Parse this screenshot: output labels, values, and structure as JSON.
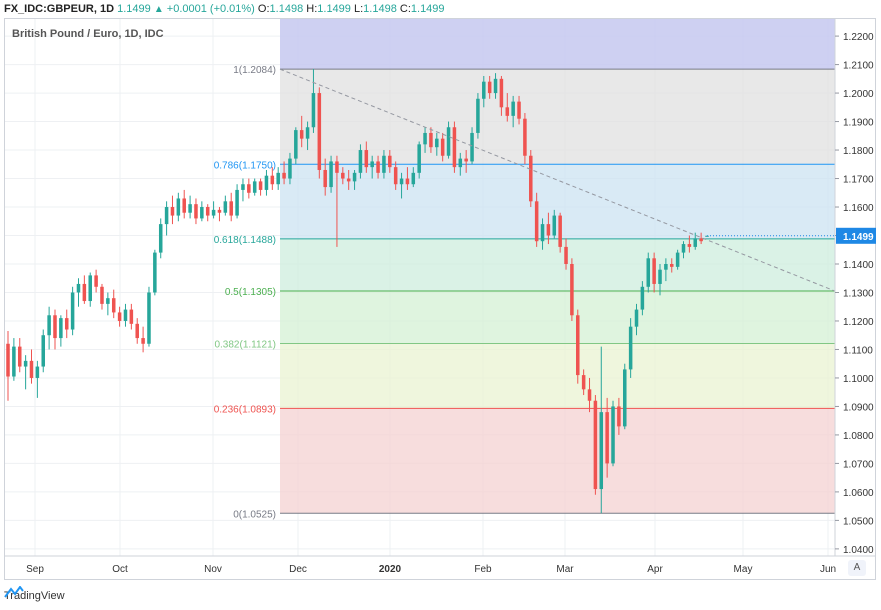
{
  "header": {
    "symbol": "FX_IDC:GBPEUR, 1D",
    "last": "1.1499",
    "change_arrow": "▲",
    "change": "+0.0001 (+0.01%)",
    "o_label": "O:",
    "o": "1.1498",
    "h_label": "H:",
    "h": "1.1499",
    "l_label": "L:",
    "l": "1.1498",
    "c_label": "C:",
    "c": "1.1499"
  },
  "subtitle": "British Pound / Euro, 1D, IDC",
  "footer": {
    "brand": "TradingView"
  },
  "auto_label": "A",
  "colors": {
    "up": "#26a69a",
    "down": "#ef5350",
    "grid": "#eef0f3",
    "fib_top_zone": "#c5c8f0",
    "fib_0786_zone": "#e0e0e0",
    "fib_0618_zone": "#cce3f2",
    "fib_05_zone": "#cdeede",
    "fib_0382_zone": "#d4f0d4",
    "fib_0236_zone": "#e9f3d2",
    "fib_0_zone": "#f4d2d2",
    "last_price_tag": "#1e88e5"
  },
  "chart_data": {
    "type": "candlestick",
    "title": "British Pound / Euro, 1D, IDC",
    "ylim": [
      1.0375,
      1.226
    ],
    "y_ticks": [
      "1.2200",
      "1.2100",
      "1.2000",
      "1.1900",
      "1.1800",
      "1.1700",
      "1.1600",
      "1.1500",
      "1.1400",
      "1.1300",
      "1.1200",
      "1.1100",
      "1.1000",
      "1.0900",
      "1.0800",
      "1.0700",
      "1.0600",
      "1.0500",
      "1.0400"
    ],
    "x_ticks": [
      "Sep",
      "Oct",
      "Nov",
      "Dec",
      "2020",
      "Feb",
      "Mar",
      "Apr",
      "May",
      "Jun"
    ],
    "last_price": "1.1499",
    "fib_levels": [
      {
        "ratio": "1",
        "price": 1.2084,
        "label": "1(1.2084)",
        "color": "#787b86"
      },
      {
        "ratio": "0.786",
        "price": 1.175,
        "label": "0.786(1.1750)",
        "color": "#2196f3"
      },
      {
        "ratio": "0.618",
        "price": 1.1488,
        "label": "0.618(1.1488)",
        "color": "#26a69a"
      },
      {
        "ratio": "0.5",
        "price": 1.1305,
        "label": "0.5(1.1305)",
        "color": "#4caf50"
      },
      {
        "ratio": "0.382",
        "price": 1.1121,
        "label": "0.382(1.1121)",
        "color": "#81c784"
      },
      {
        "ratio": "0.236",
        "price": 1.0893,
        "label": "0.236(1.0893)",
        "color": "#ef5350"
      },
      {
        "ratio": "0",
        "price": 1.0525,
        "label": "0(1.0525)",
        "color": "#787b86"
      }
    ],
    "fib_above_top": 1.226,
    "series": [
      {
        "o": 1.112,
        "h": 1.1165,
        "l": 1.092,
        "c": 1.1005
      },
      {
        "o": 1.1005,
        "h": 1.114,
        "l": 1.099,
        "c": 1.111
      },
      {
        "o": 1.111,
        "h": 1.114,
        "l": 1.102,
        "c": 1.104
      },
      {
        "o": 1.104,
        "h": 1.108,
        "l": 1.096,
        "c": 1.106
      },
      {
        "o": 1.106,
        "h": 1.11,
        "l": 1.098,
        "c": 1.1
      },
      {
        "o": 1.1,
        "h": 1.106,
        "l": 1.093,
        "c": 1.104
      },
      {
        "o": 1.104,
        "h": 1.117,
        "l": 1.102,
        "c": 1.115
      },
      {
        "o": 1.115,
        "h": 1.125,
        "l": 1.11,
        "c": 1.122
      },
      {
        "o": 1.122,
        "h": 1.124,
        "l": 1.11,
        "c": 1.114
      },
      {
        "o": 1.114,
        "h": 1.122,
        "l": 1.111,
        "c": 1.121
      },
      {
        "o": 1.121,
        "h": 1.124,
        "l": 1.114,
        "c": 1.117
      },
      {
        "o": 1.117,
        "h": 1.132,
        "l": 1.115,
        "c": 1.13
      },
      {
        "o": 1.13,
        "h": 1.135,
        "l": 1.125,
        "c": 1.133
      },
      {
        "o": 1.133,
        "h": 1.136,
        "l": 1.126,
        "c": 1.127
      },
      {
        "o": 1.127,
        "h": 1.137,
        "l": 1.125,
        "c": 1.136
      },
      {
        "o": 1.136,
        "h": 1.138,
        "l": 1.13,
        "c": 1.132
      },
      {
        "o": 1.132,
        "h": 1.133,
        "l": 1.124,
        "c": 1.126
      },
      {
        "o": 1.126,
        "h": 1.13,
        "l": 1.122,
        "c": 1.128
      },
      {
        "o": 1.128,
        "h": 1.131,
        "l": 1.121,
        "c": 1.123
      },
      {
        "o": 1.123,
        "h": 1.125,
        "l": 1.118,
        "c": 1.12
      },
      {
        "o": 1.12,
        "h": 1.126,
        "l": 1.118,
        "c": 1.124
      },
      {
        "o": 1.124,
        "h": 1.126,
        "l": 1.117,
        "c": 1.119
      },
      {
        "o": 1.119,
        "h": 1.121,
        "l": 1.112,
        "c": 1.114
      },
      {
        "o": 1.114,
        "h": 1.118,
        "l": 1.109,
        "c": 1.112
      },
      {
        "o": 1.112,
        "h": 1.132,
        "l": 1.111,
        "c": 1.13
      },
      {
        "o": 1.13,
        "h": 1.145,
        "l": 1.129,
        "c": 1.144
      },
      {
        "o": 1.144,
        "h": 1.156,
        "l": 1.142,
        "c": 1.154
      },
      {
        "o": 1.154,
        "h": 1.162,
        "l": 1.15,
        "c": 1.16
      },
      {
        "o": 1.16,
        "h": 1.164,
        "l": 1.154,
        "c": 1.157
      },
      {
        "o": 1.157,
        "h": 1.165,
        "l": 1.155,
        "c": 1.163
      },
      {
        "o": 1.163,
        "h": 1.166,
        "l": 1.156,
        "c": 1.158
      },
      {
        "o": 1.158,
        "h": 1.164,
        "l": 1.156,
        "c": 1.161
      },
      {
        "o": 1.161,
        "h": 1.163,
        "l": 1.154,
        "c": 1.156
      },
      {
        "o": 1.156,
        "h": 1.162,
        "l": 1.155,
        "c": 1.16
      },
      {
        "o": 1.16,
        "h": 1.161,
        "l": 1.155,
        "c": 1.157
      },
      {
        "o": 1.157,
        "h": 1.162,
        "l": 1.156,
        "c": 1.159
      },
      {
        "o": 1.159,
        "h": 1.16,
        "l": 1.155,
        "c": 1.158
      },
      {
        "o": 1.158,
        "h": 1.164,
        "l": 1.157,
        "c": 1.162
      },
      {
        "o": 1.162,
        "h": 1.165,
        "l": 1.155,
        "c": 1.157
      },
      {
        "o": 1.157,
        "h": 1.168,
        "l": 1.156,
        "c": 1.166
      },
      {
        "o": 1.166,
        "h": 1.17,
        "l": 1.162,
        "c": 1.168
      },
      {
        "o": 1.168,
        "h": 1.17,
        "l": 1.163,
        "c": 1.165
      },
      {
        "o": 1.165,
        "h": 1.17,
        "l": 1.164,
        "c": 1.169
      },
      {
        "o": 1.169,
        "h": 1.17,
        "l": 1.164,
        "c": 1.166
      },
      {
        "o": 1.166,
        "h": 1.173,
        "l": 1.164,
        "c": 1.171
      },
      {
        "o": 1.171,
        "h": 1.174,
        "l": 1.166,
        "c": 1.168
      },
      {
        "o": 1.168,
        "h": 1.174,
        "l": 1.166,
        "c": 1.172
      },
      {
        "o": 1.172,
        "h": 1.176,
        "l": 1.168,
        "c": 1.17
      },
      {
        "o": 1.17,
        "h": 1.179,
        "l": 1.168,
        "c": 1.177
      },
      {
        "o": 1.177,
        "h": 1.188,
        "l": 1.175,
        "c": 1.187
      },
      {
        "o": 1.187,
        "h": 1.192,
        "l": 1.181,
        "c": 1.184
      },
      {
        "o": 1.184,
        "h": 1.19,
        "l": 1.18,
        "c": 1.188
      },
      {
        "o": 1.188,
        "h": 1.2084,
        "l": 1.186,
        "c": 1.2
      },
      {
        "o": 1.2,
        "h": 1.202,
        "l": 1.17,
        "c": 1.173
      },
      {
        "o": 1.173,
        "h": 1.177,
        "l": 1.164,
        "c": 1.167
      },
      {
        "o": 1.167,
        "h": 1.178,
        "l": 1.165,
        "c": 1.176
      },
      {
        "o": 1.176,
        "h": 1.178,
        "l": 1.146,
        "c": 1.172
      },
      {
        "o": 1.172,
        "h": 1.174,
        "l": 1.168,
        "c": 1.17
      },
      {
        "o": 1.17,
        "h": 1.173,
        "l": 1.166,
        "c": 1.169
      },
      {
        "o": 1.169,
        "h": 1.173,
        "l": 1.166,
        "c": 1.172
      },
      {
        "o": 1.172,
        "h": 1.182,
        "l": 1.17,
        "c": 1.18
      },
      {
        "o": 1.18,
        "h": 1.183,
        "l": 1.172,
        "c": 1.174
      },
      {
        "o": 1.174,
        "h": 1.178,
        "l": 1.17,
        "c": 1.176
      },
      {
        "o": 1.176,
        "h": 1.178,
        "l": 1.17,
        "c": 1.172
      },
      {
        "o": 1.172,
        "h": 1.18,
        "l": 1.17,
        "c": 1.178
      },
      {
        "o": 1.178,
        "h": 1.18,
        "l": 1.172,
        "c": 1.174
      },
      {
        "o": 1.174,
        "h": 1.176,
        "l": 1.166,
        "c": 1.168
      },
      {
        "o": 1.168,
        "h": 1.172,
        "l": 1.163,
        "c": 1.17
      },
      {
        "o": 1.17,
        "h": 1.174,
        "l": 1.166,
        "c": 1.168
      },
      {
        "o": 1.168,
        "h": 1.174,
        "l": 1.167,
        "c": 1.172
      },
      {
        "o": 1.172,
        "h": 1.183,
        "l": 1.17,
        "c": 1.182
      },
      {
        "o": 1.182,
        "h": 1.188,
        "l": 1.179,
        "c": 1.186
      },
      {
        "o": 1.186,
        "h": 1.188,
        "l": 1.179,
        "c": 1.181
      },
      {
        "o": 1.181,
        "h": 1.186,
        "l": 1.178,
        "c": 1.184
      },
      {
        "o": 1.184,
        "h": 1.186,
        "l": 1.176,
        "c": 1.178
      },
      {
        "o": 1.178,
        "h": 1.19,
        "l": 1.177,
        "c": 1.188
      },
      {
        "o": 1.188,
        "h": 1.19,
        "l": 1.172,
        "c": 1.174
      },
      {
        "o": 1.174,
        "h": 1.179,
        "l": 1.171,
        "c": 1.177
      },
      {
        "o": 1.177,
        "h": 1.18,
        "l": 1.172,
        "c": 1.176
      },
      {
        "o": 1.176,
        "h": 1.188,
        "l": 1.175,
        "c": 1.186
      },
      {
        "o": 1.186,
        "h": 1.2,
        "l": 1.184,
        "c": 1.198
      },
      {
        "o": 1.198,
        "h": 1.206,
        "l": 1.195,
        "c": 1.204
      },
      {
        "o": 1.204,
        "h": 1.206,
        "l": 1.198,
        "c": 1.2
      },
      {
        "o": 1.2,
        "h": 1.207,
        "l": 1.198,
        "c": 1.205
      },
      {
        "o": 1.205,
        "h": 1.206,
        "l": 1.192,
        "c": 1.195
      },
      {
        "o": 1.195,
        "h": 1.2,
        "l": 1.19,
        "c": 1.192
      },
      {
        "o": 1.192,
        "h": 1.199,
        "l": 1.188,
        "c": 1.197
      },
      {
        "o": 1.197,
        "h": 1.199,
        "l": 1.189,
        "c": 1.191
      },
      {
        "o": 1.191,
        "h": 1.193,
        "l": 1.175,
        "c": 1.178
      },
      {
        "o": 1.178,
        "h": 1.18,
        "l": 1.16,
        "c": 1.162
      },
      {
        "o": 1.162,
        "h": 1.165,
        "l": 1.146,
        "c": 1.148
      },
      {
        "o": 1.148,
        "h": 1.156,
        "l": 1.145,
        "c": 1.154
      },
      {
        "o": 1.154,
        "h": 1.158,
        "l": 1.147,
        "c": 1.15
      },
      {
        "o": 1.15,
        "h": 1.159,
        "l": 1.149,
        "c": 1.157
      },
      {
        "o": 1.157,
        "h": 1.158,
        "l": 1.144,
        "c": 1.146
      },
      {
        "o": 1.146,
        "h": 1.149,
        "l": 1.138,
        "c": 1.14
      },
      {
        "o": 1.14,
        "h": 1.142,
        "l": 1.12,
        "c": 1.122
      },
      {
        "o": 1.122,
        "h": 1.124,
        "l": 1.098,
        "c": 1.101
      },
      {
        "o": 1.101,
        "h": 1.103,
        "l": 1.094,
        "c": 1.096
      },
      {
        "o": 1.096,
        "h": 1.1,
        "l": 1.088,
        "c": 1.092
      },
      {
        "o": 1.092,
        "h": 1.094,
        "l": 1.059,
        "c": 1.061
      },
      {
        "o": 1.061,
        "h": 1.111,
        "l": 1.0525,
        "c": 1.088
      },
      {
        "o": 1.088,
        "h": 1.093,
        "l": 1.065,
        "c": 1.07
      },
      {
        "o": 1.07,
        "h": 1.092,
        "l": 1.069,
        "c": 1.09
      },
      {
        "o": 1.09,
        "h": 1.093,
        "l": 1.08,
        "c": 1.083
      },
      {
        "o": 1.083,
        "h": 1.105,
        "l": 1.082,
        "c": 1.103
      },
      {
        "o": 1.103,
        "h": 1.121,
        "l": 1.1,
        "c": 1.118
      },
      {
        "o": 1.118,
        "h": 1.126,
        "l": 1.115,
        "c": 1.124
      },
      {
        "o": 1.124,
        "h": 1.134,
        "l": 1.122,
        "c": 1.132
      },
      {
        "o": 1.132,
        "h": 1.144,
        "l": 1.13,
        "c": 1.142
      },
      {
        "o": 1.142,
        "h": 1.144,
        "l": 1.13,
        "c": 1.133
      },
      {
        "o": 1.133,
        "h": 1.14,
        "l": 1.129,
        "c": 1.138
      },
      {
        "o": 1.138,
        "h": 1.142,
        "l": 1.134,
        "c": 1.14
      },
      {
        "o": 1.14,
        "h": 1.142,
        "l": 1.137,
        "c": 1.139
      },
      {
        "o": 1.139,
        "h": 1.145,
        "l": 1.138,
        "c": 1.144
      },
      {
        "o": 1.144,
        "h": 1.148,
        "l": 1.142,
        "c": 1.147
      },
      {
        "o": 1.147,
        "h": 1.15,
        "l": 1.144,
        "c": 1.146
      },
      {
        "o": 1.146,
        "h": 1.151,
        "l": 1.145,
        "c": 1.149
      },
      {
        "o": 1.149,
        "h": 1.151,
        "l": 1.147,
        "c": 1.148
      },
      {
        "o": 1.1498,
        "h": 1.1499,
        "l": 1.1498,
        "c": 1.1499
      }
    ]
  }
}
